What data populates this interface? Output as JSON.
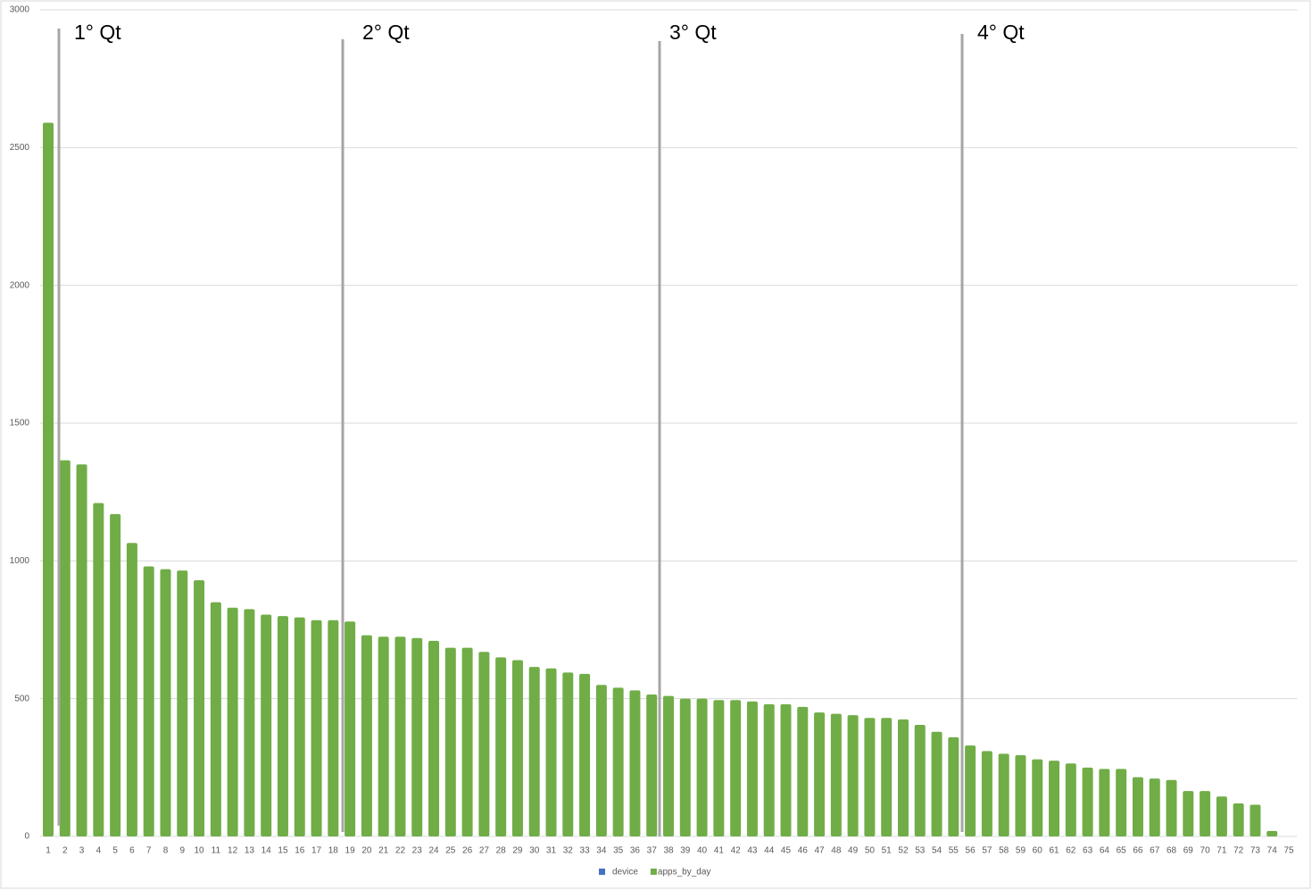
{
  "chart_data": {
    "type": "bar",
    "categories": [
      "1",
      "2",
      "3",
      "4",
      "5",
      "6",
      "7",
      "8",
      "9",
      "10",
      "11",
      "12",
      "13",
      "14",
      "15",
      "16",
      "17",
      "18",
      "19",
      "20",
      "21",
      "22",
      "23",
      "24",
      "25",
      "26",
      "27",
      "28",
      "29",
      "30",
      "31",
      "32",
      "33",
      "34",
      "35",
      "36",
      "37",
      "38",
      "39",
      "40",
      "41",
      "42",
      "43",
      "44",
      "45",
      "46",
      "47",
      "48",
      "49",
      "50",
      "51",
      "52",
      "53",
      "54",
      "55",
      "56",
      "57",
      "58",
      "59",
      "60",
      "61",
      "62",
      "63",
      "64",
      "65",
      "66",
      "67",
      "68",
      "69",
      "70",
      "71",
      "72",
      "73",
      "74",
      "75"
    ],
    "series": [
      {
        "name": "device",
        "color": "#4472c4",
        "values": [
          null,
          null,
          null,
          null,
          null,
          null,
          null,
          null,
          null,
          null,
          null,
          null,
          null,
          null,
          null,
          null,
          null,
          null,
          null,
          null,
          null,
          null,
          null,
          null,
          null,
          null,
          null,
          null,
          null,
          null,
          null,
          null,
          null,
          null,
          null,
          null,
          null,
          null,
          null,
          null,
          null,
          null,
          null,
          null,
          null,
          null,
          null,
          null,
          null,
          null,
          null,
          null,
          null,
          null,
          null,
          null,
          null,
          null,
          null,
          null,
          null,
          null,
          null,
          null,
          null,
          null,
          null,
          null,
          null,
          null,
          null,
          null,
          null,
          null,
          null
        ]
      },
      {
        "name": "apps_by_day",
        "color": "#70ad47",
        "values": [
          2590,
          1365,
          1350,
          1210,
          1170,
          1065,
          980,
          970,
          965,
          930,
          850,
          830,
          825,
          805,
          800,
          795,
          785,
          785,
          780,
          730,
          725,
          725,
          720,
          710,
          685,
          685,
          670,
          650,
          640,
          615,
          610,
          595,
          590,
          550,
          540,
          530,
          515,
          510,
          500,
          500,
          495,
          495,
          490,
          480,
          480,
          470,
          450,
          445,
          440,
          430,
          430,
          425,
          405,
          380,
          360,
          330,
          310,
          300,
          295,
          280,
          275,
          265,
          250,
          245,
          245,
          215,
          210,
          205,
          165,
          165,
          145,
          120,
          115,
          20,
          null
        ]
      }
    ],
    "ylim": [
      0,
      3000
    ],
    "yticks": [
      0,
      500,
      1000,
      1500,
      2000,
      2500,
      3000
    ],
    "grid": true,
    "legend": "bottom",
    "annotations": [
      "1° Qt",
      "2° Qt",
      "3° Qt",
      "4° Qt"
    ]
  }
}
